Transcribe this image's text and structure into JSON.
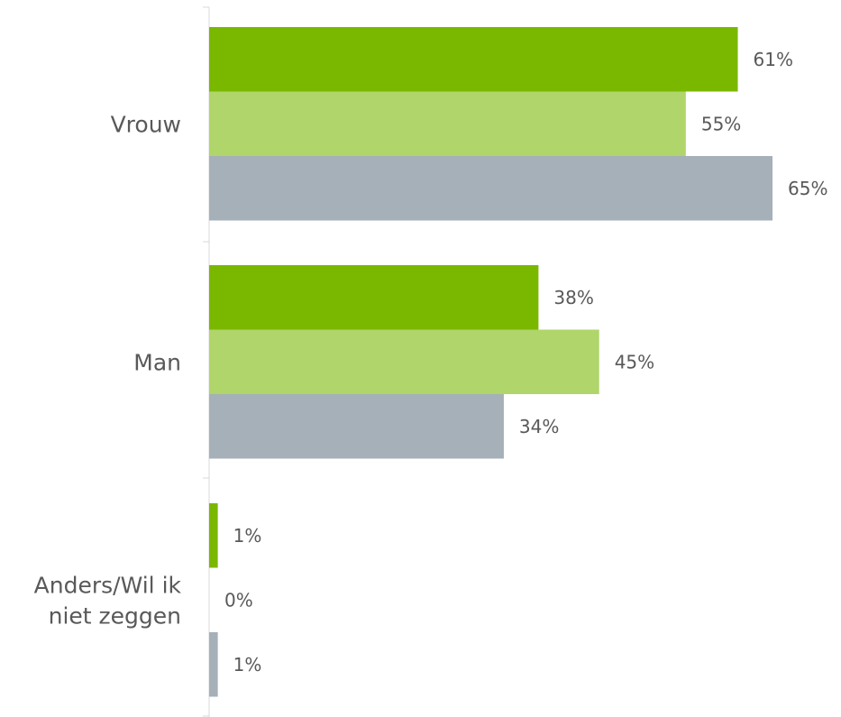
{
  "chart_data": {
    "type": "bar",
    "orientation": "horizontal",
    "categories": [
      [
        "Vrouw"
      ],
      [
        "Man"
      ],
      [
        "Anders/Wil ik",
        "niet zeggen"
      ]
    ],
    "series": [
      {
        "color": "#7AB800",
        "values": [
          61,
          38,
          1
        ],
        "labels": [
          "61%",
          "38%",
          "1%"
        ]
      },
      {
        "color": "#B0D56A",
        "values": [
          55,
          45,
          0
        ],
        "labels": [
          "55%",
          "45%",
          "0%"
        ]
      },
      {
        "color": "#A5B0B8",
        "values": [
          65,
          34,
          1
        ],
        "labels": [
          "65%",
          "34%",
          "1%"
        ]
      }
    ],
    "xlim": [
      0,
      65
    ],
    "grid": false,
    "legend": "none",
    "axis_color": "#D9D9D9"
  }
}
